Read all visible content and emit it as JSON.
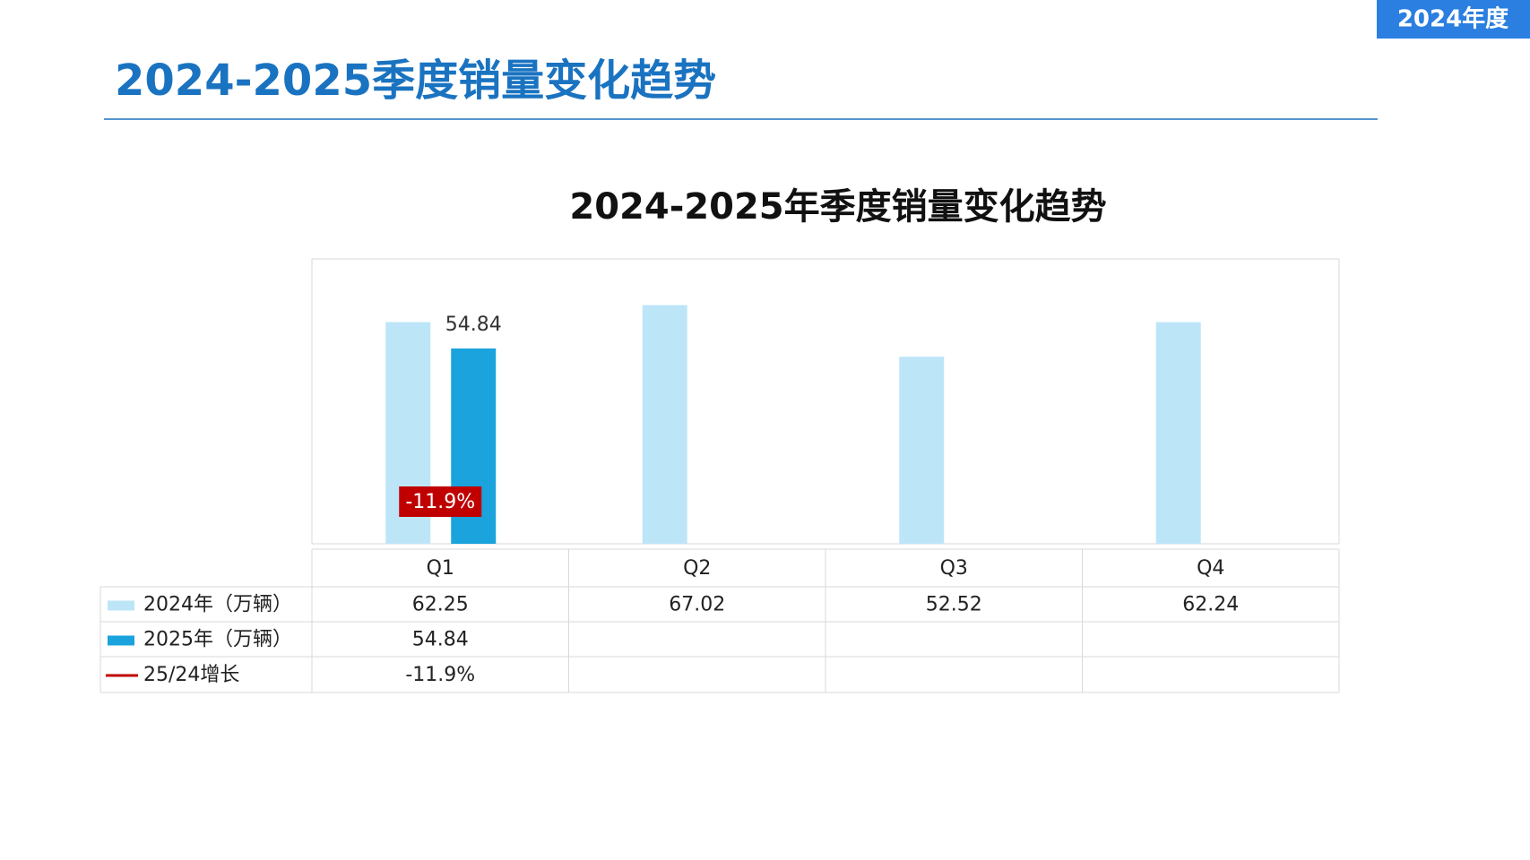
{
  "badge": "2024年度",
  "header": {
    "title": "2024-2025季度销量变化趋势"
  },
  "chart_data": {
    "type": "bar",
    "title": "2024-2025年季度销量变化趋势",
    "categories": [
      "Q1",
      "Q2",
      "Q3",
      "Q4"
    ],
    "ylim": [
      0,
      80
    ],
    "series": [
      {
        "name": "2024年（万辆）",
        "color": "#bde5f8",
        "values": [
          62.25,
          67.02,
          52.52,
          62.24
        ]
      },
      {
        "name": "2025年（万辆）",
        "color": "#1aa3dc",
        "values": [
          54.84,
          null,
          null,
          null
        ]
      },
      {
        "name": "25/24增长",
        "color": "#c00000",
        "values": [
          -11.9,
          null,
          null,
          null
        ],
        "value_labels": [
          "-11.9%",
          null,
          null,
          null
        ]
      }
    ]
  }
}
